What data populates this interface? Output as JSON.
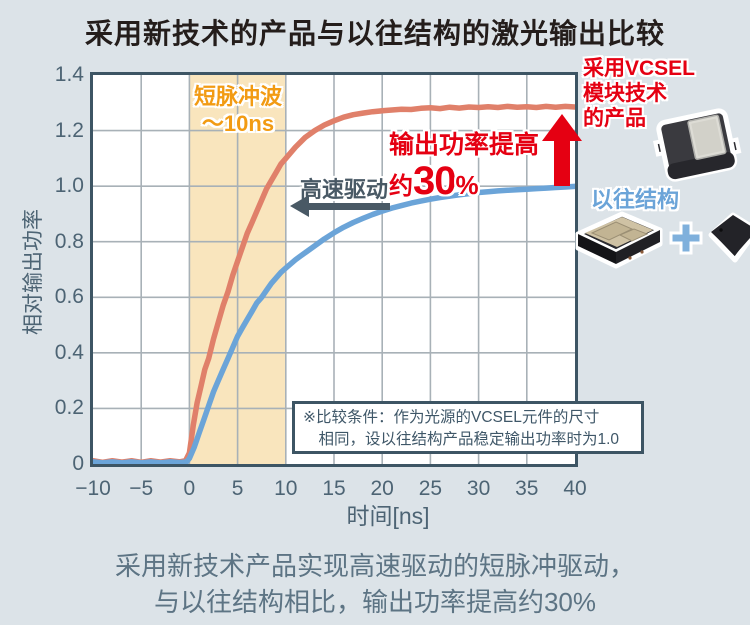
{
  "title": "采用新技术的产品与以往结构的激光输出比较",
  "chart_data": {
    "type": "line",
    "title": "采用新技术的产品与以往结构的激光输出比较",
    "xlabel": "时间[ns]",
    "ylabel": "相对输出功率",
    "xlim": [
      -10,
      40
    ],
    "ylim": [
      0,
      1.4
    ],
    "grid": true,
    "grid_color": "#a8b1b7",
    "xticks": [
      -10,
      -5,
      0,
      5,
      10,
      15,
      20,
      25,
      30,
      35,
      40
    ],
    "xtick_labels": [
      "−10",
      "−5",
      "0",
      "5",
      "10",
      "15",
      "20",
      "25",
      "30",
      "35",
      "40"
    ],
    "yticks": [
      0,
      0.2,
      0.4,
      0.6,
      0.8,
      1.0,
      1.2,
      1.4
    ],
    "ytick_labels": [
      "0",
      "0.2",
      "0.4",
      "0.6",
      "0.8",
      "1.0",
      "1.2",
      "1.4"
    ],
    "band": {
      "x0": 0,
      "x1": 10,
      "color": "#f9e5bd",
      "label_line1": "短脉冲波",
      "label_line2": "～10ns"
    },
    "series": [
      {
        "name": "采用VCSEL模块技术的产品",
        "color": "#e0806a",
        "points": [
          [
            -10,
            0.012
          ],
          [
            -9,
            0.006
          ],
          [
            -8,
            0.012
          ],
          [
            -7,
            0.007
          ],
          [
            -6,
            0.012
          ],
          [
            -5,
            0.006
          ],
          [
            -4,
            0.012
          ],
          [
            -3,
            0.007
          ],
          [
            -2,
            0.012
          ],
          [
            -1,
            0.008
          ],
          [
            -0.4,
            0.012
          ],
          [
            0,
            0.04
          ],
          [
            0.4,
            0.14
          ],
          [
            0.8,
            0.22
          ],
          [
            1.2,
            0.28
          ],
          [
            1.6,
            0.34
          ],
          [
            2,
            0.38
          ],
          [
            2.5,
            0.45
          ],
          [
            3,
            0.51
          ],
          [
            3.5,
            0.57
          ],
          [
            4,
            0.62
          ],
          [
            4.5,
            0.68
          ],
          [
            5,
            0.73
          ],
          [
            5.5,
            0.78
          ],
          [
            6,
            0.83
          ],
          [
            6.5,
            0.87
          ],
          [
            7,
            0.91
          ],
          [
            7.5,
            0.95
          ],
          [
            8,
            0.99
          ],
          [
            8.5,
            1.02
          ],
          [
            9,
            1.05
          ],
          [
            9.5,
            1.08
          ],
          [
            10,
            1.1
          ],
          [
            11,
            1.14
          ],
          [
            12,
            1.175
          ],
          [
            13,
            1.2
          ],
          [
            14,
            1.22
          ],
          [
            15,
            1.235
          ],
          [
            16,
            1.248
          ],
          [
            17,
            1.257
          ],
          [
            18,
            1.263
          ],
          [
            19,
            1.268
          ],
          [
            20,
            1.271
          ],
          [
            21,
            1.274
          ],
          [
            22,
            1.277
          ],
          [
            23,
            1.276
          ],
          [
            24,
            1.28
          ],
          [
            25,
            1.282
          ],
          [
            26,
            1.279
          ],
          [
            27,
            1.284
          ],
          [
            28,
            1.281
          ],
          [
            29,
            1.285
          ],
          [
            30,
            1.283
          ],
          [
            31,
            1.286
          ],
          [
            32,
            1.283
          ],
          [
            33,
            1.287
          ],
          [
            34,
            1.284
          ],
          [
            35,
            1.286
          ],
          [
            36,
            1.283
          ],
          [
            37,
            1.287
          ],
          [
            38,
            1.284
          ],
          [
            39,
            1.287
          ],
          [
            40,
            1.285
          ]
        ]
      },
      {
        "name": "以往结构",
        "color": "#6ba4d8",
        "points": [
          [
            -10,
            0.008
          ],
          [
            -9,
            0.004
          ],
          [
            -8,
            0.008
          ],
          [
            -7,
            0.004
          ],
          [
            -6,
            0.008
          ],
          [
            -5,
            0.004
          ],
          [
            -4,
            0.008
          ],
          [
            -3,
            0.004
          ],
          [
            -2,
            0.008
          ],
          [
            -1,
            0.005
          ],
          [
            -0.3,
            0.008
          ],
          [
            0,
            0.02
          ],
          [
            0.5,
            0.06
          ],
          [
            1,
            0.11
          ],
          [
            1.5,
            0.16
          ],
          [
            2,
            0.21
          ],
          [
            2.5,
            0.26
          ],
          [
            3,
            0.3
          ],
          [
            3.5,
            0.34
          ],
          [
            4,
            0.38
          ],
          [
            4.5,
            0.42
          ],
          [
            5,
            0.46
          ],
          [
            5.5,
            0.49
          ],
          [
            6,
            0.52
          ],
          [
            6.5,
            0.55
          ],
          [
            7,
            0.58
          ],
          [
            7.5,
            0.6
          ],
          [
            8,
            0.625
          ],
          [
            8.5,
            0.65
          ],
          [
            9,
            0.67
          ],
          [
            9.5,
            0.69
          ],
          [
            10,
            0.705
          ],
          [
            10.5,
            0.72
          ],
          [
            11,
            0.735
          ],
          [
            11.5,
            0.748
          ],
          [
            12,
            0.76
          ],
          [
            13,
            0.785
          ],
          [
            14,
            0.81
          ],
          [
            15,
            0.832
          ],
          [
            16,
            0.852
          ],
          [
            17,
            0.869
          ],
          [
            18,
            0.884
          ],
          [
            19,
            0.898
          ],
          [
            20,
            0.91
          ],
          [
            21,
            0.921
          ],
          [
            22,
            0.93
          ],
          [
            23,
            0.939
          ],
          [
            24,
            0.946
          ],
          [
            25,
            0.953
          ],
          [
            26,
            0.959
          ],
          [
            27,
            0.964
          ],
          [
            28,
            0.969
          ],
          [
            29,
            0.973
          ],
          [
            30,
            0.977
          ],
          [
            31,
            0.98
          ],
          [
            32,
            0.983
          ],
          [
            33,
            0.985
          ],
          [
            34,
            0.987
          ],
          [
            35,
            0.989
          ],
          [
            36,
            0.991
          ],
          [
            37,
            0.993
          ],
          [
            38,
            0.995
          ],
          [
            39,
            0.997
          ],
          [
            40,
            0.999
          ]
        ]
      }
    ],
    "annotations": {
      "speed_label": "高速驱动",
      "power_line1": "输出功率提高",
      "power_prefix": "约",
      "power_value": "30",
      "power_suffix": "%",
      "note_line1": "※比较条件：作为光源的VCSEL元件的尺寸",
      "note_line2": "相同，设以往结构产品稳定输出功率时为1.0"
    }
  },
  "legend": {
    "new_product_line1": "采用VCSEL",
    "new_product_line2": "模块技术",
    "new_product_line3": "的产品",
    "old_product_label": "以往结构"
  },
  "caption_line1": "采用新技术产品实现高速驱动的短脉冲驱动，",
  "caption_line2": "与以往结构相比，输出功率提高约30%",
  "colors": {
    "accent_red": "#e50012",
    "curve_red": "#e0806a",
    "curve_blue": "#6ba4d8",
    "slate": "#3d5564",
    "band": "#f9e5bd",
    "background": "#dce3e8"
  }
}
